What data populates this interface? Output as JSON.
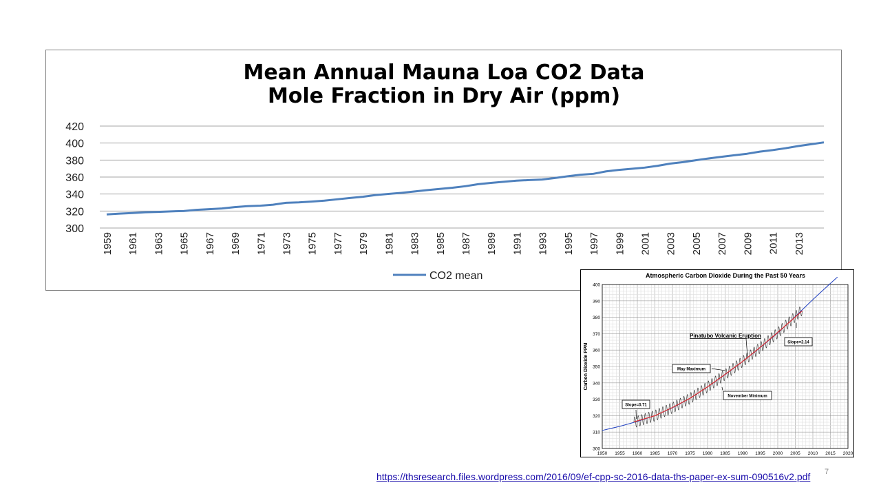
{
  "chart_data": [
    {
      "type": "line",
      "title_lines": [
        "Mean Annual Mauna Loa CO2 Data",
        "Mole Fraction in Dry Air (ppm)"
      ],
      "xlabel": "",
      "ylabel": "",
      "ylim": [
        300,
        420
      ],
      "y_ticks": [
        300,
        320,
        340,
        360,
        380,
        400,
        420
      ],
      "x_tick_labels": [
        "1959",
        "1961",
        "1963",
        "1965",
        "1967",
        "1969",
        "1971",
        "1973",
        "1975",
        "1977",
        "1979",
        "1981",
        "1983",
        "1985",
        "1987",
        "1989",
        "1991",
        "1993",
        "1995",
        "1997",
        "1999",
        "2001",
        "2003",
        "2005",
        "2007",
        "2009",
        "2011",
        "2013"
      ],
      "grid": true,
      "legend_position": "bottom",
      "color": "#4f81bd",
      "series": [
        {
          "name": "CO2 mean",
          "x": [
            1959,
            1960,
            1961,
            1962,
            1963,
            1964,
            1965,
            1966,
            1967,
            1968,
            1969,
            1970,
            1971,
            1972,
            1973,
            1974,
            1975,
            1976,
            1977,
            1978,
            1979,
            1980,
            1981,
            1982,
            1983,
            1984,
            1985,
            1986,
            1987,
            1988,
            1989,
            1990,
            1991,
            1992,
            1993,
            1994,
            1995,
            1996,
            1997,
            1998,
            1999,
            2000,
            2001,
            2002,
            2003,
            2004,
            2005,
            2006,
            2007,
            2008,
            2009,
            2010,
            2011,
            2012,
            2013,
            2014,
            2015
          ],
          "values": [
            316,
            316.9,
            317.6,
            318.5,
            319,
            319.6,
            320,
            321.4,
            322.2,
            323,
            324.6,
            325.7,
            326.3,
            327.5,
            329.7,
            330.2,
            331.1,
            332.2,
            333.8,
            335.4,
            336.8,
            338.8,
            340.1,
            341.4,
            343,
            344.6,
            346,
            347.4,
            349.2,
            351.6,
            353.1,
            354.4,
            355.7,
            356.5,
            357.1,
            358.9,
            360.9,
            362.7,
            363.8,
            366.7,
            368.4,
            369.7,
            371.1,
            373.2,
            375.8,
            377.5,
            379.8,
            381.9,
            383.8,
            385.6,
            387.4,
            389.9,
            391.7,
            393.9,
            396.5,
            398.6,
            400.8
          ]
        }
      ]
    },
    {
      "type": "line",
      "title": "Atmospheric Carbon Dioxide During the Past 50 Years",
      "ylabel": "Carbon Dioxide PPM",
      "xlim": [
        1950,
        2020
      ],
      "ylim": [
        300,
        400
      ],
      "x_ticks": [
        1950,
        1955,
        1960,
        1965,
        1970,
        1975,
        1980,
        1985,
        1990,
        1995,
        2000,
        2005,
        2010,
        2015,
        2020
      ],
      "y_ticks": [
        300,
        310,
        320,
        330,
        340,
        350,
        360,
        370,
        380,
        390,
        400
      ],
      "grid": true,
      "trend_curve": {
        "color": "#1f3fbf",
        "x": [
          1950,
          1955,
          1960,
          1965,
          1970,
          1975,
          1980,
          1985,
          1990,
          1995,
          2000,
          2005,
          2010,
          2015,
          2017
        ],
        "values": [
          311,
          313.5,
          316.5,
          320,
          324.8,
          330.5,
          337.5,
          345,
          353,
          361.5,
          370.5,
          380.5,
          390.8,
          400.7,
          404.5
        ]
      },
      "seasonal_data": {
        "color": "#444444",
        "x_start": 1959,
        "x_end": 2007,
        "amplitude_ppm": 3.3,
        "peak_label": "May Maximum",
        "trough_label": "November Minimum"
      },
      "fit_curve": {
        "color": "#e23030",
        "x": [
          1959,
          1965,
          1970,
          1975,
          1980,
          1985,
          1990,
          1995,
          2000,
          2005,
          2007
        ],
        "values": [
          316.2,
          320,
          325,
          330.6,
          337.6,
          345.2,
          353.1,
          361.7,
          370.8,
          380.2,
          384
        ]
      },
      "annotations": [
        {
          "text": "Pinatubo Volcanic Eruption",
          "x": 1991.4,
          "y": 356
        },
        {
          "text": "May Maximum",
          "x": 1985,
          "y": 347.5
        },
        {
          "text": "November Minimum",
          "x": 1984.3,
          "y": 335.5
        },
        {
          "text": "Slope=0.71",
          "x": 1959.7,
          "y": 318
        },
        {
          "text": "Slope=2.14",
          "x": 2005.3,
          "y": 376.7
        }
      ]
    }
  ],
  "source_link": "https://thsresearch.files.wordpress.com/2016/09/ef-cpp-sc-2016-data-ths-paper-ex-sum-090516v2.pdf",
  "slide_number": "7"
}
